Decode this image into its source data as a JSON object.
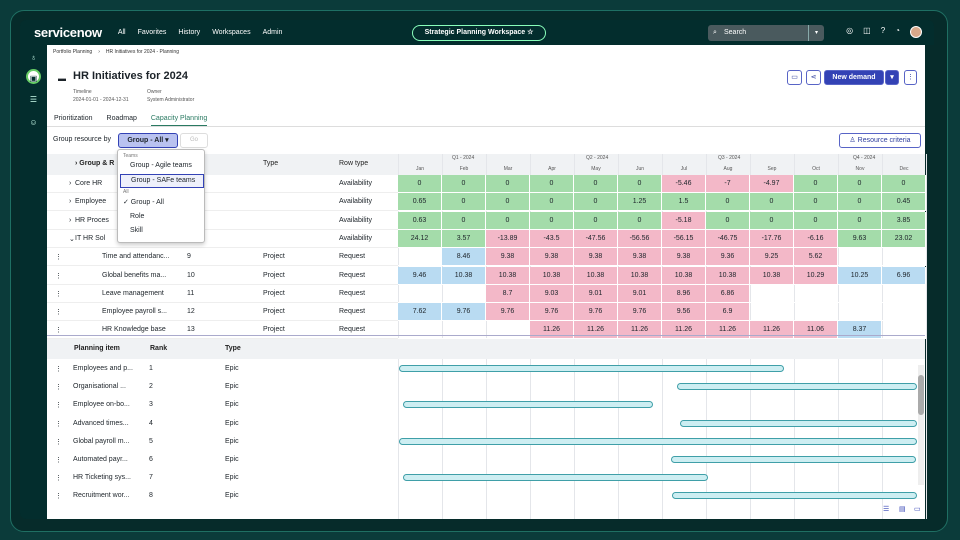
{
  "topbar": {
    "logo": "servicenow",
    "nav": [
      "All",
      "Favorites",
      "History",
      "Workspaces",
      "Admin"
    ],
    "workspace": "Strategic Planning Workspace ☆",
    "search_placeholder": "Search"
  },
  "breadcrumb": [
    "Portfolio Planning",
    "HR Initiatives for 2024 - Planning"
  ],
  "page": {
    "title": "HR Initiatives for 2024",
    "timeline_label": "Timeline",
    "timeline": "2024-01-01 - 2024-12-31",
    "owner_label": "Owner",
    "owner": "System Administrator",
    "new_demand": "New demand"
  },
  "tabs": [
    "Prioritization",
    "Roadmap",
    "Capacity Planning"
  ],
  "group_by": {
    "label": "Group resource by",
    "selected": "Group - All ▾",
    "go": "Go",
    "resource_criteria": "Resource criteria"
  },
  "dropdown": {
    "teams_header": "Teams",
    "options": [
      "Group - Agile teams",
      "Group - SAFe teams"
    ],
    "all_header": "All",
    "all_options": [
      "✓ Group - All",
      "Role",
      "Skill"
    ]
  },
  "table_headers": {
    "group": "Group & R",
    "type": "Type",
    "row_type": "Row type"
  },
  "quarters": [
    "Q1 - 2024",
    "Q2 - 2024",
    "Q3 - 2024",
    "Q4 - 2024"
  ],
  "months": [
    "Jan",
    "Feb",
    "Mar",
    "Apr",
    "May",
    "Jun",
    "Jul",
    "Aug",
    "Sep",
    "Oct",
    "Nov",
    "Dec"
  ],
  "cap_rows": [
    {
      "name": "Core HR",
      "rank": "",
      "type": "",
      "row_type": "Availability",
      "vals": [
        "0",
        "0",
        "0",
        "0",
        "0",
        "0",
        "-5.46",
        "-7",
        "-4.97",
        "0",
        "0",
        "0"
      ],
      "cls": [
        "gr",
        "gr",
        "gr",
        "gr",
        "gr",
        "gr",
        "pk",
        "pk",
        "pk",
        "gr",
        "gr",
        "gr"
      ]
    },
    {
      "name": "Employee",
      "rank": "",
      "type": "",
      "row_type": "Availability",
      "vals": [
        "0.65",
        "0",
        "0",
        "0",
        "0",
        "1.25",
        "1.5",
        "0",
        "0",
        "0",
        "0",
        "0.45"
      ],
      "cls": [
        "gr",
        "gr",
        "gr",
        "gr",
        "gr",
        "gr",
        "gr",
        "gr",
        "gr",
        "gr",
        "gr",
        "gr"
      ]
    },
    {
      "name": "HR Proces",
      "rank": "",
      "type": "",
      "row_type": "Availability",
      "vals": [
        "0.63",
        "0",
        "0",
        "0",
        "0",
        "0",
        "-5.18",
        "0",
        "0",
        "0",
        "0",
        "3.85"
      ],
      "cls": [
        "gr",
        "gr",
        "gr",
        "gr",
        "gr",
        "gr",
        "pk",
        "gr",
        "gr",
        "gr",
        "gr",
        "gr"
      ]
    },
    {
      "name": "IT HR Sol",
      "rank": "",
      "type": "",
      "row_type": "Availability",
      "vals": [
        "24.12",
        "3.57",
        "-13.89",
        "-43.5",
        "-47.56",
        "-56.56",
        "-56.15",
        "-46.75",
        "-17.76",
        "-6.16",
        "9.63",
        "23.02"
      ],
      "cls": [
        "gr",
        "gr",
        "pk",
        "pk",
        "pk",
        "pk",
        "pk",
        "pk",
        "pk",
        "pk",
        "gr",
        "gr"
      ]
    },
    {
      "name": "Time and attendanc...",
      "rank": "9",
      "type": "Project",
      "row_type": "Request",
      "vals": [
        "",
        "8.46",
        "9.38",
        "9.38",
        "9.38",
        "9.38",
        "9.38",
        "9.36",
        "9.25",
        "5.62",
        "",
        ""
      ],
      "cls": [
        "",
        "bl",
        "pk",
        "pk",
        "pk",
        "pk",
        "pk",
        "pk",
        "pk",
        "pk",
        "",
        ""
      ]
    },
    {
      "name": "Global benefits ma...",
      "rank": "10",
      "type": "Project",
      "row_type": "Request",
      "vals": [
        "9.46",
        "10.38",
        "10.38",
        "10.38",
        "10.38",
        "10.38",
        "10.38",
        "10.38",
        "10.38",
        "10.29",
        "10.25",
        "6.96"
      ],
      "cls": [
        "bl",
        "bl",
        "pk",
        "pk",
        "pk",
        "pk",
        "pk",
        "pk",
        "pk",
        "pk",
        "bl",
        "bl"
      ]
    },
    {
      "name": "Leave management",
      "rank": "11",
      "type": "Project",
      "row_type": "Request",
      "vals": [
        "",
        "",
        "8.7",
        "9.03",
        "9.01",
        "9.01",
        "8.96",
        "6.86",
        "",
        "",
        "",
        ""
      ],
      "cls": [
        "",
        "",
        "pk",
        "pk",
        "pk",
        "pk",
        "pk",
        "pk",
        "",
        "",
        "",
        ""
      ]
    },
    {
      "name": "Employee payroll s...",
      "rank": "12",
      "type": "Project",
      "row_type": "Request",
      "vals": [
        "7.62",
        "9.76",
        "9.76",
        "9.76",
        "9.76",
        "9.76",
        "9.56",
        "6.9",
        "",
        "",
        "",
        ""
      ],
      "cls": [
        "bl",
        "bl",
        "pk",
        "pk",
        "pk",
        "pk",
        "pk",
        "pk",
        "",
        "",
        "",
        ""
      ]
    },
    {
      "name": "HR Knowledge base",
      "rank": "13",
      "type": "Project",
      "row_type": "Request",
      "vals": [
        "",
        "",
        "",
        "11.26",
        "11.26",
        "11.26",
        "11.26",
        "11.26",
        "11.26",
        "11.06",
        "8.37",
        ""
      ],
      "cls": [
        "",
        "",
        "",
        "pk",
        "pk",
        "pk",
        "pk",
        "pk",
        "pk",
        "pk",
        "bl",
        ""
      ]
    }
  ],
  "plan_headers": {
    "item": "Planning item",
    "rank": "Rank",
    "type": "Type"
  },
  "plan_rows": [
    {
      "name": "Employees and p...",
      "rank": "1",
      "type": "Epic"
    },
    {
      "name": "Organisational ...",
      "rank": "2",
      "type": "Epic"
    },
    {
      "name": "Employee on-bo...",
      "rank": "3",
      "type": "Epic"
    },
    {
      "name": "Advanced times...",
      "rank": "4",
      "type": "Epic"
    },
    {
      "name": "Global payroll m...",
      "rank": "5",
      "type": "Epic"
    },
    {
      "name": "Automated payr...",
      "rank": "6",
      "type": "Epic"
    },
    {
      "name": "HR Ticketing sys...",
      "rank": "7",
      "type": "Epic"
    },
    {
      "name": "Recruitment wor...",
      "rank": "8",
      "type": "Epic"
    }
  ]
}
